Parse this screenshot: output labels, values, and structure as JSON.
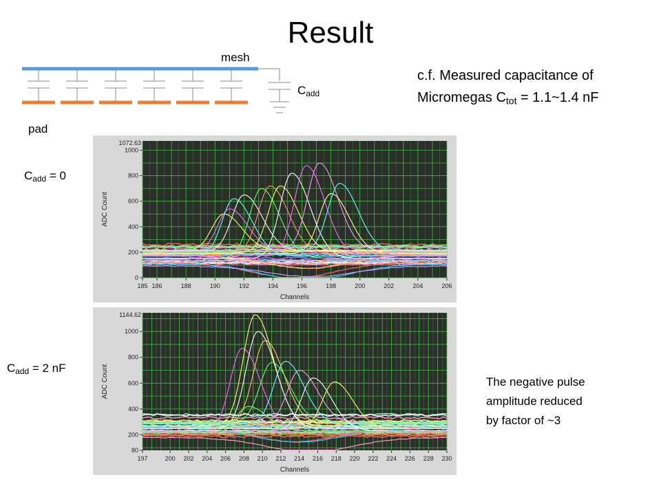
{
  "slide": {
    "title": "Result",
    "mesh_label": "mesh",
    "pad_label": "pad",
    "cadd_symbol": "C",
    "cadd_sub": "add",
    "measured_line1": "c.f.  Measured capacitance of",
    "measured_line2_pre": "Micromegas   C",
    "measured_sub": "tot",
    "measured_line2_post": " = 1.1~1.4 nF",
    "cadd0_value": " = 0",
    "cadd2_value": " = 2 nF",
    "note_lines": [
      "The negative pulse",
      "amplitude reduced",
      "by factor of ~3"
    ],
    "colors": {
      "mesh": "#5b9bd5",
      "pad": "#ed7d31",
      "plot_bg": "#2a2f2a",
      "grid": "#3fbf3f",
      "frame": "#d8d8d8"
    }
  },
  "chart_data": [
    {
      "type": "line",
      "title": "",
      "xlabel": "Channels",
      "ylabel": "ADC Count",
      "xlim": [
        185,
        206
      ],
      "ylim": [
        0,
        1072.63
      ],
      "y_max_label": "1072.63",
      "xticks": [
        185,
        186,
        188,
        190,
        192,
        194,
        196,
        198,
        200,
        202,
        204,
        206
      ],
      "yticks": [
        0,
        200,
        400,
        600,
        800,
        1000
      ],
      "grid": true,
      "baseline_traces": 22,
      "negative_traces": 6,
      "pulses": [
        {
          "peak_x": 190.6,
          "peak_y": 500,
          "color": "#ffff66"
        },
        {
          "peak_x": 191.0,
          "peak_y": 540,
          "color": "#ff66ff"
        },
        {
          "peak_x": 191.3,
          "peak_y": 620,
          "color": "#66ffff"
        },
        {
          "peak_x": 192.0,
          "peak_y": 650,
          "color": "#ffffff"
        },
        {
          "peak_x": 193.2,
          "peak_y": 700,
          "color": "#66ff66"
        },
        {
          "peak_x": 193.8,
          "peak_y": 720,
          "color": "#ff9966"
        },
        {
          "peak_x": 194.5,
          "peak_y": 720,
          "color": "#ffff66"
        },
        {
          "peak_x": 195.3,
          "peak_y": 820,
          "color": "#ffffff"
        },
        {
          "peak_x": 196.3,
          "peak_y": 880,
          "color": "#ff66ff"
        },
        {
          "peak_x": 197.2,
          "peak_y": 900,
          "color": "#ff99ff"
        },
        {
          "peak_x": 198.6,
          "peak_y": 740,
          "color": "#66ffff"
        },
        {
          "peak_x": 198.0,
          "peak_y": 660,
          "color": "#ffff99"
        }
      ]
    },
    {
      "type": "line",
      "title": "",
      "xlabel": "Channels",
      "ylabel": "ADC Count",
      "xlim": [
        197,
        230
      ],
      "ylim": [
        80,
        1144.62
      ],
      "y_max_label": "1144.62",
      "xticks": [
        197,
        200,
        202,
        204,
        206,
        208,
        210,
        212,
        214,
        216,
        218,
        220,
        222,
        224,
        226,
        228,
        230
      ],
      "yticks": [
        80,
        200,
        400,
        600,
        800,
        1000
      ],
      "grid": true,
      "baseline_traces": 26,
      "negative_traces": 3,
      "pulses": [
        {
          "peak_x": 207.8,
          "peak_y": 870,
          "color": "#ff66ff"
        },
        {
          "peak_x": 208.5,
          "peak_y": 420,
          "color": "#66ff66"
        },
        {
          "peak_x": 209.2,
          "peak_y": 1130,
          "color": "#ffff66"
        },
        {
          "peak_x": 209.5,
          "peak_y": 1000,
          "color": "#ffffff"
        },
        {
          "peak_x": 210.3,
          "peak_y": 930,
          "color": "#ffcc66"
        },
        {
          "peak_x": 211.0,
          "peak_y": 760,
          "color": "#66ff66"
        },
        {
          "peak_x": 212.5,
          "peak_y": 770,
          "color": "#66ffff"
        },
        {
          "peak_x": 214.0,
          "peak_y": 700,
          "color": "#ff99ff"
        },
        {
          "peak_x": 215.5,
          "peak_y": 640,
          "color": "#ffffff"
        },
        {
          "peak_x": 217.8,
          "peak_y": 610,
          "color": "#ffff66"
        }
      ]
    }
  ]
}
